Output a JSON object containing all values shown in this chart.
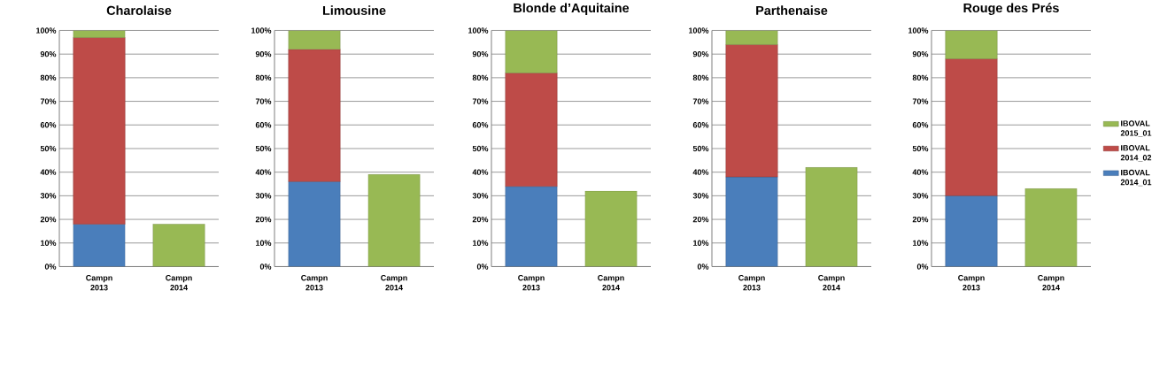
{
  "chart_data": [
    {
      "type": "bar",
      "stacked": true,
      "title": "Charolaise",
      "categories": [
        "Campn 2013",
        "Campn 2014"
      ],
      "ylim": [
        0,
        100
      ],
      "yticks": [
        {
          "value": 0,
          "label": "0%"
        },
        {
          "value": 10,
          "label": "10%"
        },
        {
          "value": 20,
          "label": "20%"
        },
        {
          "value": 30,
          "label": "30%"
        },
        {
          "value": 40,
          "label": "40%"
        },
        {
          "value": 50,
          "label": "50%"
        },
        {
          "value": 60,
          "label": "60%"
        },
        {
          "value": 70,
          "label": "70%"
        },
        {
          "value": 80,
          "label": "80%"
        },
        {
          "value": 90,
          "label": "90%"
        },
        {
          "value": 100,
          "label": "100%"
        }
      ],
      "grid": "y",
      "series": [
        {
          "color": "#4a7ebb",
          "values": [
            18,
            null
          ]
        },
        {
          "color": "#be4b48",
          "values": [
            79,
            null
          ]
        },
        {
          "color": "#98b954",
          "values": [
            3,
            18
          ]
        }
      ]
    },
    {
      "type": "bar",
      "stacked": true,
      "title": "Limousine",
      "categories": [
        "Campn 2013",
        "Campn 2014"
      ],
      "ylim": [
        0,
        100
      ],
      "yticks": [
        {
          "value": 0,
          "label": "0%"
        },
        {
          "value": 10,
          "label": "10%"
        },
        {
          "value": 20,
          "label": "20%"
        },
        {
          "value": 30,
          "label": "30%"
        },
        {
          "value": 40,
          "label": "40%"
        },
        {
          "value": 50,
          "label": "50%"
        },
        {
          "value": 60,
          "label": "60%"
        },
        {
          "value": 70,
          "label": "70%"
        },
        {
          "value": 80,
          "label": "80%"
        },
        {
          "value": 90,
          "label": "90%"
        },
        {
          "value": 100,
          "label": "100%"
        }
      ],
      "grid": "y",
      "series": [
        {
          "color": "#4a7ebb",
          "values": [
            36,
            null
          ]
        },
        {
          "color": "#be4b48",
          "values": [
            56,
            null
          ]
        },
        {
          "color": "#98b954",
          "values": [
            8,
            39
          ]
        }
      ]
    },
    {
      "type": "bar",
      "stacked": true,
      "title": "Blonde d’Aquitaine",
      "categories": [
        "Campn 2013",
        "Campn 2014"
      ],
      "ylim": [
        0,
        100
      ],
      "yticks": [
        {
          "value": 0,
          "label": "0%"
        },
        {
          "value": 10,
          "label": "10%"
        },
        {
          "value": 20,
          "label": "20%"
        },
        {
          "value": 30,
          "label": "30%"
        },
        {
          "value": 40,
          "label": "40%"
        },
        {
          "value": 50,
          "label": "50%"
        },
        {
          "value": 60,
          "label": "60%"
        },
        {
          "value": 70,
          "label": "70%"
        },
        {
          "value": 80,
          "label": "80%"
        },
        {
          "value": 90,
          "label": "90%"
        },
        {
          "value": 100,
          "label": "100%"
        }
      ],
      "grid": "y",
      "series": [
        {
          "color": "#4a7ebb",
          "values": [
            34,
            null
          ]
        },
        {
          "color": "#be4b48",
          "values": [
            48,
            null
          ]
        },
        {
          "color": "#98b954",
          "values": [
            18,
            32
          ]
        }
      ]
    },
    {
      "type": "bar",
      "stacked": true,
      "title": "Parthenaise",
      "categories": [
        "Campn 2013",
        "Campn 2014"
      ],
      "ylim": [
        0,
        100
      ],
      "yticks": [
        {
          "value": 0,
          "label": "0%"
        },
        {
          "value": 10,
          "label": "10%"
        },
        {
          "value": 20,
          "label": "20%"
        },
        {
          "value": 30,
          "label": "30%"
        },
        {
          "value": 40,
          "label": "40%"
        },
        {
          "value": 50,
          "label": "50%"
        },
        {
          "value": 60,
          "label": "60%"
        },
        {
          "value": 70,
          "label": "70%"
        },
        {
          "value": 80,
          "label": "80%"
        },
        {
          "value": 90,
          "label": "90%"
        },
        {
          "value": 100,
          "label": "100%"
        }
      ],
      "grid": "y",
      "series": [
        {
          "color": "#4a7ebb",
          "values": [
            38,
            null
          ]
        },
        {
          "color": "#be4b48",
          "values": [
            56,
            null
          ]
        },
        {
          "color": "#98b954",
          "values": [
            6,
            42
          ]
        }
      ]
    },
    {
      "type": "bar",
      "stacked": true,
      "title": "Rouge des Prés",
      "categories": [
        "Campn 2013",
        "Campn 2014"
      ],
      "ylim": [
        0,
        100
      ],
      "yticks": [
        {
          "value": 0,
          "label": "0%"
        },
        {
          "value": 10,
          "label": "10%"
        },
        {
          "value": 20,
          "label": "20%"
        },
        {
          "value": 30,
          "label": "30%"
        },
        {
          "value": 40,
          "label": "40%"
        },
        {
          "value": 50,
          "label": "50%"
        },
        {
          "value": 60,
          "label": "60%"
        },
        {
          "value": 70,
          "label": "70%"
        },
        {
          "value": 80,
          "label": "80%"
        },
        {
          "value": 90,
          "label": "90%"
        },
        {
          "value": 100,
          "label": "100%"
        }
      ],
      "grid": "y",
      "legend": "right",
      "series": [
        {
          "name": "IBOVAL 2014_01",
          "color": "#4a7ebb",
          "values": [
            30,
            null
          ]
        },
        {
          "name": "IBOVAL 2014_02",
          "color": "#be4b48",
          "values": [
            58,
            null
          ]
        },
        {
          "name": "IBOVAL 2015_01",
          "color": "#98b954",
          "values": [
            12,
            33
          ]
        }
      ]
    }
  ]
}
